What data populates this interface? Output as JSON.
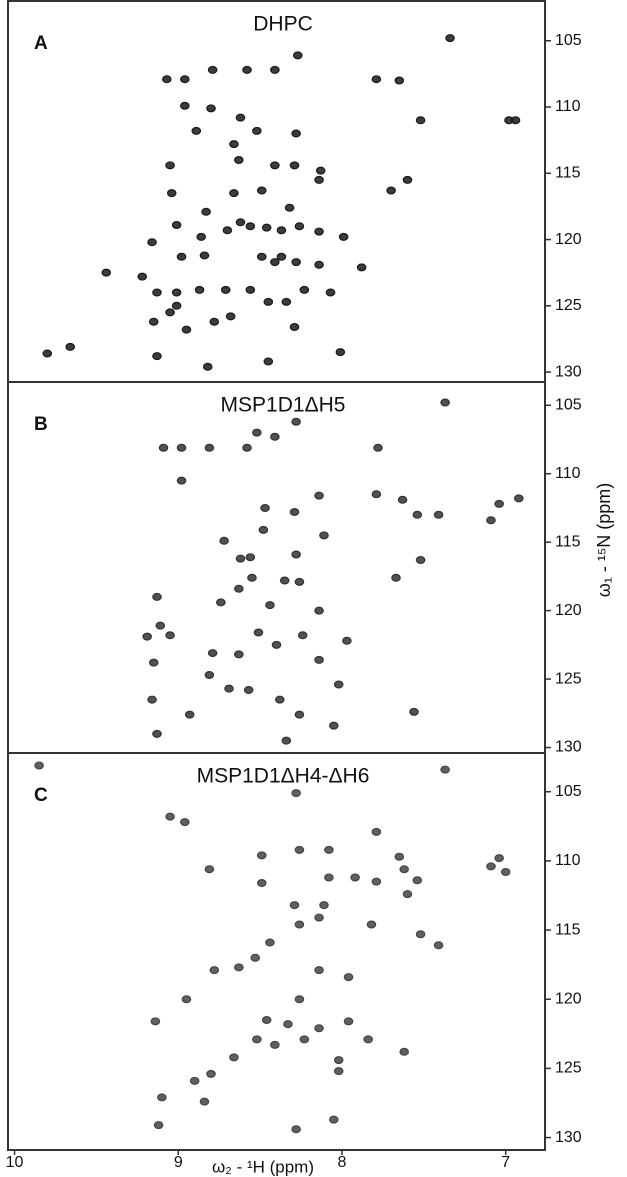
{
  "chart_data": [
    {
      "type": "scatter",
      "panel": "A",
      "title": "DHPC",
      "color": "#1a1a1a",
      "xlim": [
        10.04,
        6.76
      ],
      "ylim": [
        102,
        130.75
      ],
      "yticks": [
        105,
        110,
        115,
        120,
        125,
        130
      ],
      "x": [
        7.34,
        9.07,
        8.96,
        8.79,
        8.58,
        8.41,
        8.27,
        7.79,
        7.65,
        8.96,
        8.8,
        8.62,
        7.52,
        6.98,
        6.94,
        8.89,
        8.66,
        8.28,
        8.52,
        8.63,
        8.41,
        8.29,
        8.13,
        9.05,
        7.6,
        7.7,
        8.14,
        8.49,
        8.66,
        9.04,
        8.83,
        8.32,
        8.62,
        8.56,
        8.46,
        8.7,
        8.37,
        8.26,
        8.14,
        8.86,
        9.01,
        7.99,
        9.16,
        8.98,
        8.84,
        8.49,
        8.41,
        8.28,
        8.37,
        8.14,
        7.88,
        9.44,
        9.22,
        9.13,
        9.01,
        8.87,
        8.71,
        8.56,
        8.23,
        8.07,
        9.01,
        9.05,
        8.68,
        8.45,
        8.34,
        9.15,
        8.95,
        8.78,
        8.29,
        9.8,
        9.66,
        9.13,
        8.82,
        8.45,
        8.01
      ],
      "y": [
        104.8,
        107.9,
        107.9,
        107.2,
        107.2,
        107.2,
        106.1,
        107.9,
        108.0,
        109.9,
        110.1,
        110.8,
        111.0,
        111.0,
        111.0,
        111.8,
        112.8,
        112.0,
        111.8,
        114.0,
        114.4,
        114.4,
        114.8,
        114.4,
        115.5,
        116.3,
        115.5,
        116.3,
        116.5,
        116.5,
        117.9,
        117.6,
        118.7,
        119.0,
        119.1,
        119.3,
        119.3,
        119.0,
        119.4,
        119.8,
        118.9,
        119.8,
        120.2,
        121.3,
        121.2,
        121.3,
        121.7,
        121.7,
        121.3,
        121.9,
        122.1,
        122.5,
        122.8,
        124.0,
        124.0,
        123.8,
        123.8,
        123.8,
        123.8,
        124.0,
        125.0,
        125.5,
        125.8,
        124.7,
        124.7,
        126.2,
        126.8,
        126.2,
        126.6,
        128.6,
        128.1,
        128.8,
        129.6,
        129.2,
        128.5
      ]
    },
    {
      "type": "scatter",
      "panel": "B",
      "title": "MSP1D1ΔH5",
      "color": "#333333",
      "ylabel": "ω₁ - ¹⁵N (ppm)",
      "xlim": [
        10.04,
        6.76
      ],
      "ylim": [
        103.3,
        130.4
      ],
      "yticks": [
        105,
        110,
        115,
        120,
        125,
        130
      ],
      "x": [
        7.37,
        8.52,
        8.41,
        8.28,
        9.09,
        8.98,
        8.81,
        8.58,
        7.78,
        8.98,
        8.47,
        8.14,
        8.29,
        7.79,
        7.63,
        7.54,
        7.41,
        7.04,
        6.92,
        7.09,
        8.48,
        8.72,
        8.11,
        8.62,
        8.56,
        8.28,
        7.52,
        7.67,
        8.26,
        8.35,
        8.55,
        8.63,
        8.44,
        8.74,
        8.14,
        9.13,
        9.11,
        9.19,
        9.05,
        8.51,
        8.24,
        8.4,
        8.63,
        8.14,
        7.97,
        8.79,
        9.15,
        8.81,
        8.69,
        8.57,
        8.02,
        9.16,
        8.93,
        8.38,
        8.26,
        8.05,
        9.13,
        8.34,
        7.56
      ],
      "y": [
        104.8,
        107.0,
        107.3,
        106.2,
        108.1,
        108.1,
        108.1,
        108.1,
        108.1,
        110.5,
        112.5,
        111.6,
        112.8,
        111.5,
        111.9,
        113.0,
        113.0,
        112.2,
        111.8,
        113.4,
        114.1,
        114.9,
        114.5,
        116.2,
        116.1,
        115.9,
        116.3,
        117.6,
        117.9,
        117.8,
        117.6,
        118.4,
        119.6,
        119.4,
        120.0,
        119.0,
        121.1,
        121.9,
        121.8,
        121.6,
        121.8,
        122.5,
        123.2,
        123.6,
        122.2,
        123.1,
        123.8,
        124.7,
        125.7,
        125.8,
        125.4,
        126.5,
        127.6,
        126.5,
        127.6,
        128.4,
        129.0,
        129.5,
        127.4
      ]
    },
    {
      "type": "scatter",
      "panel": "C",
      "title": "MSP1D1ΔH4-ΔH6",
      "color": "#444444",
      "xlabel": "ω₂ - ¹H (ppm)",
      "xlim": [
        10.04,
        6.76
      ],
      "ylim": [
        102.2,
        130.9
      ],
      "yticks": [
        105,
        110,
        115,
        120,
        125,
        130
      ],
      "xticks": [
        10,
        9,
        8,
        7
      ],
      "x": [
        9.85,
        7.37,
        8.28,
        9.05,
        8.96,
        8.26,
        8.49,
        8.08,
        7.79,
        7.65,
        7.04,
        7.09,
        7.0,
        8.81,
        8.49,
        8.08,
        7.92,
        7.79,
        7.62,
        7.54,
        7.6,
        8.29,
        8.11,
        8.14,
        8.26,
        7.82,
        7.52,
        7.41,
        8.44,
        8.53,
        8.78,
        8.63,
        8.14,
        7.96,
        8.95,
        8.26,
        9.14,
        8.46,
        8.33,
        8.14,
        7.96,
        8.52,
        8.41,
        8.23,
        7.84,
        8.66,
        8.02,
        8.02,
        7.62,
        8.8,
        8.9,
        9.1,
        8.84,
        8.05,
        8.28,
        9.12
      ],
      "y": [
        103.1,
        103.4,
        105.1,
        106.8,
        107.2,
        109.2,
        109.6,
        109.2,
        107.9,
        109.7,
        109.8,
        110.4,
        110.8,
        110.6,
        111.6,
        111.2,
        111.2,
        111.5,
        110.6,
        111.4,
        112.4,
        113.2,
        113.2,
        114.1,
        114.6,
        114.6,
        115.3,
        116.1,
        115.9,
        117.0,
        117.9,
        117.7,
        117.9,
        118.4,
        120.0,
        120.0,
        121.6,
        121.5,
        121.8,
        122.1,
        121.6,
        122.9,
        123.3,
        122.9,
        122.9,
        124.2,
        124.4,
        125.2,
        123.8,
        125.4,
        125.9,
        127.1,
        127.4,
        128.7,
        129.4,
        129.1
      ]
    }
  ]
}
